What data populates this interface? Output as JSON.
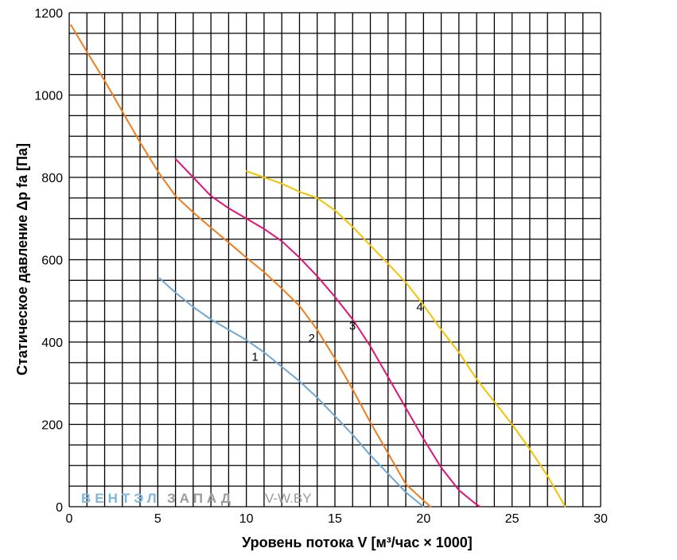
{
  "chart_data": {
    "type": "line",
    "xlabel": "Уровень потока V [м³/час × 1000]",
    "ylabel": "Статическое давление Δp fa [Па]",
    "xlim": [
      0,
      30
    ],
    "ylim": [
      0,
      1200
    ],
    "x_ticks": [
      0,
      5,
      10,
      15,
      20,
      25,
      30
    ],
    "y_ticks": [
      0,
      200,
      400,
      600,
      800,
      1000,
      1200
    ],
    "x_tick_labels": [
      "0",
      "5",
      "10",
      "15",
      "20",
      "25",
      "30"
    ],
    "y_tick_labels": [
      "0",
      "200",
      "400",
      "600",
      "800",
      "1000",
      "1200"
    ],
    "grid": true,
    "grid_minor_step_x": 1,
    "grid_minor_step_y": 50,
    "series": [
      {
        "name": "1",
        "color": "#6fa8d6",
        "points": [
          [
            5.1,
            555
          ],
          [
            6,
            520
          ],
          [
            7,
            485
          ],
          [
            8,
            455
          ],
          [
            9,
            430
          ],
          [
            10,
            405
          ],
          [
            11,
            375
          ],
          [
            12,
            340
          ],
          [
            13,
            305
          ],
          [
            14,
            265
          ],
          [
            15,
            220
          ],
          [
            16,
            175
          ],
          [
            17,
            125
          ],
          [
            18,
            80
          ],
          [
            19,
            35
          ],
          [
            20,
            0
          ]
        ],
        "label_pos": [
          10.3,
          355
        ]
      },
      {
        "name": "2",
        "color": "#f07d1d",
        "points": [
          [
            0.1,
            1170
          ],
          [
            1,
            1105
          ],
          [
            2,
            1035
          ],
          [
            3,
            960
          ],
          [
            4,
            885
          ],
          [
            5,
            815
          ],
          [
            6,
            755
          ],
          [
            7,
            715
          ],
          [
            8,
            678
          ],
          [
            9,
            642
          ],
          [
            10,
            605
          ],
          [
            11,
            570
          ],
          [
            12,
            530
          ],
          [
            13,
            488
          ],
          [
            14,
            430
          ],
          [
            15,
            360
          ],
          [
            16,
            285
          ],
          [
            17,
            205
          ],
          [
            18,
            130
          ],
          [
            19,
            55
          ],
          [
            20,
            15
          ],
          [
            20.4,
            0
          ]
        ],
        "label_pos": [
          13.5,
          400
        ]
      },
      {
        "name": "3",
        "color": "#e0137b",
        "points": [
          [
            6,
            845
          ],
          [
            7,
            800
          ],
          [
            8,
            755
          ],
          [
            9,
            725
          ],
          [
            10,
            700
          ],
          [
            11,
            675
          ],
          [
            12,
            645
          ],
          [
            13,
            605
          ],
          [
            14,
            560
          ],
          [
            15,
            510
          ],
          [
            16,
            455
          ],
          [
            17,
            390
          ],
          [
            18,
            315
          ],
          [
            19,
            240
          ],
          [
            20,
            165
          ],
          [
            21,
            95
          ],
          [
            22,
            40
          ],
          [
            23,
            5
          ],
          [
            23.2,
            0
          ]
        ],
        "label_pos": [
          15.8,
          430
        ]
      },
      {
        "name": "4",
        "color": "#f5c200",
        "points": [
          [
            10,
            815
          ],
          [
            11,
            800
          ],
          [
            12,
            785
          ],
          [
            13,
            765
          ],
          [
            14,
            750
          ],
          [
            15,
            720
          ],
          [
            16,
            680
          ],
          [
            17,
            635
          ],
          [
            18,
            590
          ],
          [
            19,
            545
          ],
          [
            20,
            490
          ],
          [
            21,
            430
          ],
          [
            22,
            375
          ],
          [
            23,
            310
          ],
          [
            24,
            255
          ],
          [
            25,
            200
          ],
          [
            26,
            140
          ],
          [
            27,
            75
          ],
          [
            28,
            0
          ]
        ],
        "label_pos": [
          19.6,
          475
        ]
      }
    ],
    "annotations": [
      {
        "text": "ВЕНТЭЛ",
        "color": "#7fb6de"
      },
      {
        "text": "ЗАПАД",
        "color": "#9a9a9a"
      },
      {
        "text": "V-W.BY",
        "color": "#9a9a9a"
      }
    ]
  }
}
